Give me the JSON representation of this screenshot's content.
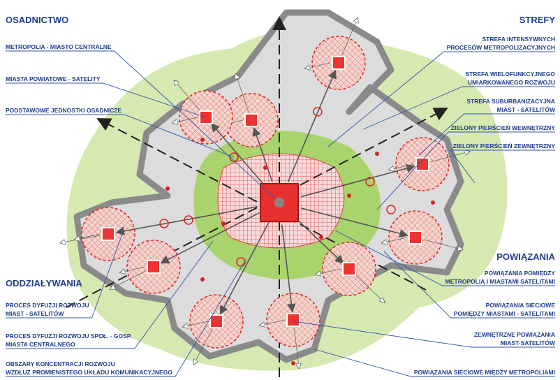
{
  "left": {
    "sections": [
      {
        "heading": "OSADNICTWO",
        "items": [
          [
            "METROPOLIA - MIASTO CENTRALNE"
          ],
          [
            "MIASTA POWIATOWE - SATELITY"
          ],
          [
            "PODSTAWOWE JEDNOSTKI OSADNICZE"
          ]
        ]
      },
      {
        "heading": "ODDZIAŁYWANIA",
        "items": [
          [
            "PROCES DYFUZJI ROZWOJU",
            "MIAST - SATELITÓW"
          ],
          [
            "PROCES DYFUZJI ROZWOJU SPOŁ. - GOSP.",
            "MIASTA CENTRALNEGO"
          ],
          [
            "OBSZARY KONCENTRACJI ROZWOJU",
            "WZDŁUŻ PROMIENISTEGO UKŁADU KOMUNIKACYJNEGO"
          ]
        ]
      }
    ]
  },
  "right": {
    "sections": [
      {
        "heading": "STREFY",
        "items": [
          [
            "STREFA INTENSYWNYCH",
            "PROCESÓW METROPOLIZACYJNYCH"
          ],
          [
            "STREFA WIELOFUNKCYJNEGO",
            "UMIARKOWANEGO ROZWOJU"
          ],
          [
            "STREFA SUBURBANIZACYJNA",
            "MIAST - SATELITÓW"
          ],
          [
            "ZIELONY PIERŚCIEŃ WEWNĘTRZNY"
          ],
          [
            "ZIELONY PIERŚCIEŃ ZEWNĘTRZNY"
          ]
        ]
      },
      {
        "heading": "POWIĄZANIA",
        "items": [
          [
            "POWIĄZANIA POMIĘDZY",
            "METROPOLIĄ I MIASTAMI SATELITAMI"
          ],
          [
            "POWIĄZANIA SIECIOWE",
            "POMIĘDZY MIASTAMI - SATELITAMI"
          ],
          [
            "ZEWNĘTRZNE POWIĄZANIA",
            "MIAST-SATELITÓW"
          ],
          [
            "POWIĄZANIA SIECIOWE MIĘDZY METROPOLIAMI"
          ]
        ]
      }
    ]
  }
}
